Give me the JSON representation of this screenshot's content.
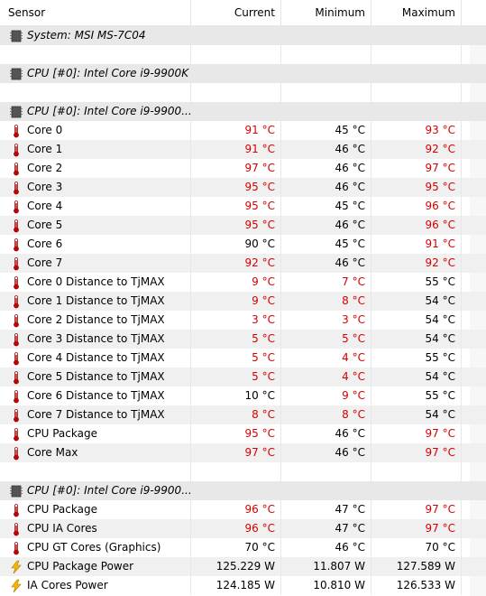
{
  "columns": {
    "sensor": "Sensor",
    "current": "Current",
    "minimum": "Minimum",
    "maximum": "Maximum"
  },
  "colors": {
    "warning_red": "#d40000",
    "group_bg": "#e8e8e8",
    "alt_row_bg": "#f0f0f0"
  },
  "rows": [
    {
      "type": "group",
      "icon": "chip-icon",
      "label": "System: MSI MS-7C04"
    },
    {
      "type": "blank"
    },
    {
      "type": "group",
      "icon": "chip-icon",
      "label": "CPU [#0]: Intel Core i9-9900K"
    },
    {
      "type": "blank"
    },
    {
      "type": "group",
      "icon": "chip-icon",
      "label": "CPU [#0]: Intel Core i9-9900..."
    },
    {
      "type": "sensor",
      "icon": "thermometer-icon",
      "label": "Core 0",
      "current": "91 °C",
      "minimum": "45 °C",
      "maximum": "93 °C",
      "cur_red": true,
      "min_red": false,
      "max_red": true
    },
    {
      "type": "sensor",
      "icon": "thermometer-icon",
      "label": "Core 1",
      "current": "91 °C",
      "minimum": "46 °C",
      "maximum": "92 °C",
      "cur_red": true,
      "min_red": false,
      "max_red": true
    },
    {
      "type": "sensor",
      "icon": "thermometer-icon",
      "label": "Core 2",
      "current": "97 °C",
      "minimum": "46 °C",
      "maximum": "97 °C",
      "cur_red": true,
      "min_red": false,
      "max_red": true
    },
    {
      "type": "sensor",
      "icon": "thermometer-icon",
      "label": "Core 3",
      "current": "95 °C",
      "minimum": "46 °C",
      "maximum": "95 °C",
      "cur_red": true,
      "min_red": false,
      "max_red": true
    },
    {
      "type": "sensor",
      "icon": "thermometer-icon",
      "label": "Core 4",
      "current": "95 °C",
      "minimum": "45 °C",
      "maximum": "96 °C",
      "cur_red": true,
      "min_red": false,
      "max_red": true
    },
    {
      "type": "sensor",
      "icon": "thermometer-icon",
      "label": "Core 5",
      "current": "95 °C",
      "minimum": "46 °C",
      "maximum": "96 °C",
      "cur_red": true,
      "min_red": false,
      "max_red": true
    },
    {
      "type": "sensor",
      "icon": "thermometer-icon",
      "label": "Core 6",
      "current": "90 °C",
      "minimum": "45 °C",
      "maximum": "91 °C",
      "cur_red": false,
      "min_red": false,
      "max_red": true
    },
    {
      "type": "sensor",
      "icon": "thermometer-icon",
      "label": "Core 7",
      "current": "92 °C",
      "minimum": "46 °C",
      "maximum": "92 °C",
      "cur_red": true,
      "min_red": false,
      "max_red": true
    },
    {
      "type": "sensor",
      "icon": "thermometer-icon",
      "label": "Core 0 Distance to TjMAX",
      "current": "9 °C",
      "minimum": "7 °C",
      "maximum": "55 °C",
      "cur_red": true,
      "min_red": true,
      "max_red": false
    },
    {
      "type": "sensor",
      "icon": "thermometer-icon",
      "label": "Core 1 Distance to TjMAX",
      "current": "9 °C",
      "minimum": "8 °C",
      "maximum": "54 °C",
      "cur_red": true,
      "min_red": true,
      "max_red": false
    },
    {
      "type": "sensor",
      "icon": "thermometer-icon",
      "label": "Core 2 Distance to TjMAX",
      "current": "3 °C",
      "minimum": "3 °C",
      "maximum": "54 °C",
      "cur_red": true,
      "min_red": true,
      "max_red": false
    },
    {
      "type": "sensor",
      "icon": "thermometer-icon",
      "label": "Core 3 Distance to TjMAX",
      "current": "5 °C",
      "minimum": "5 °C",
      "maximum": "54 °C",
      "cur_red": true,
      "min_red": true,
      "max_red": false
    },
    {
      "type": "sensor",
      "icon": "thermometer-icon",
      "label": "Core 4 Distance to TjMAX",
      "current": "5 °C",
      "minimum": "4 °C",
      "maximum": "55 °C",
      "cur_red": true,
      "min_red": true,
      "max_red": false
    },
    {
      "type": "sensor",
      "icon": "thermometer-icon",
      "label": "Core 5 Distance to TjMAX",
      "current": "5 °C",
      "minimum": "4 °C",
      "maximum": "54 °C",
      "cur_red": true,
      "min_red": true,
      "max_red": false
    },
    {
      "type": "sensor",
      "icon": "thermometer-icon",
      "label": "Core 6 Distance to TjMAX",
      "current": "10 °C",
      "minimum": "9 °C",
      "maximum": "55 °C",
      "cur_red": false,
      "min_red": true,
      "max_red": false
    },
    {
      "type": "sensor",
      "icon": "thermometer-icon",
      "label": "Core 7 Distance to TjMAX",
      "current": "8 °C",
      "minimum": "8 °C",
      "maximum": "54 °C",
      "cur_red": true,
      "min_red": true,
      "max_red": false
    },
    {
      "type": "sensor",
      "icon": "thermometer-icon",
      "label": "CPU Package",
      "current": "95 °C",
      "minimum": "46 °C",
      "maximum": "97 °C",
      "cur_red": true,
      "min_red": false,
      "max_red": true
    },
    {
      "type": "sensor",
      "icon": "thermometer-icon",
      "label": "Core Max",
      "current": "97 °C",
      "minimum": "46 °C",
      "maximum": "97 °C",
      "cur_red": true,
      "min_red": false,
      "max_red": true
    },
    {
      "type": "blank"
    },
    {
      "type": "group",
      "icon": "chip-icon",
      "label": "CPU [#0]: Intel Core i9-9900..."
    },
    {
      "type": "sensor",
      "icon": "thermometer-icon",
      "label": "CPU Package",
      "current": "96 °C",
      "minimum": "47 °C",
      "maximum": "97 °C",
      "cur_red": true,
      "min_red": false,
      "max_red": true
    },
    {
      "type": "sensor",
      "icon": "thermometer-icon",
      "label": "CPU IA Cores",
      "current": "96 °C",
      "minimum": "47 °C",
      "maximum": "97 °C",
      "cur_red": true,
      "min_red": false,
      "max_red": true
    },
    {
      "type": "sensor",
      "icon": "thermometer-icon",
      "label": "CPU GT Cores (Graphics)",
      "current": "70 °C",
      "minimum": "46 °C",
      "maximum": "70 °C",
      "cur_red": false,
      "min_red": false,
      "max_red": false
    },
    {
      "type": "sensor",
      "icon": "lightning-icon",
      "label": "CPU Package Power",
      "current": "125.229 W",
      "minimum": "11.807 W",
      "maximum": "127.589 W",
      "cur_red": false,
      "min_red": false,
      "max_red": false
    },
    {
      "type": "sensor",
      "icon": "lightning-icon",
      "label": "IA Cores Power",
      "current": "124.185 W",
      "minimum": "10.810 W",
      "maximum": "126.533 W",
      "cur_red": false,
      "min_red": false,
      "max_red": false
    }
  ]
}
